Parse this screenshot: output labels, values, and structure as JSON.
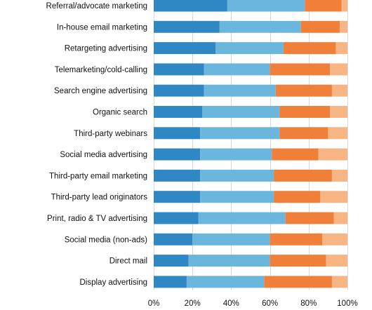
{
  "chart_data": {
    "type": "bar",
    "orientation": "horizontal",
    "stacked": true,
    "title": "",
    "xlabel": "",
    "ylabel": "",
    "xlim": [
      0,
      100
    ],
    "x_ticks": [
      "0%",
      "20%",
      "40%",
      "60%",
      "80%",
      "100%"
    ],
    "grid": true,
    "legend": "none",
    "categories": [
      "Referral/advocate marketing",
      "In-house email marketing",
      "Retargeting advertising",
      "Telemarketing/cold-calling",
      "Search engine advertising",
      "Organic search",
      "Third-party webinars",
      "Social media advertising",
      "Third-party email marketing",
      "Third-party lead originators",
      "Print, radio & TV advertising",
      "Social media (non-ads)",
      "Direct mail",
      "Display advertising"
    ],
    "series": [
      {
        "color": "#2f87c4",
        "values": [
          38,
          34,
          32,
          26,
          26,
          25,
          24,
          24,
          24,
          24,
          23,
          20,
          18,
          17
        ]
      },
      {
        "color": "#6bb6dd",
        "values": [
          40,
          42,
          35,
          34,
          37,
          40,
          41,
          37,
          38,
          38,
          45,
          40,
          42,
          40
        ]
      },
      {
        "color": "#f07f3a",
        "values": [
          19,
          20,
          27,
          31,
          29,
          26,
          25,
          24,
          30,
          24,
          25,
          27,
          29,
          35
        ]
      },
      {
        "color": "#f6b583",
        "values": [
          3,
          4,
          6,
          9,
          8,
          9,
          10,
          15,
          8,
          14,
          7,
          13,
          11,
          8
        ]
      }
    ]
  }
}
